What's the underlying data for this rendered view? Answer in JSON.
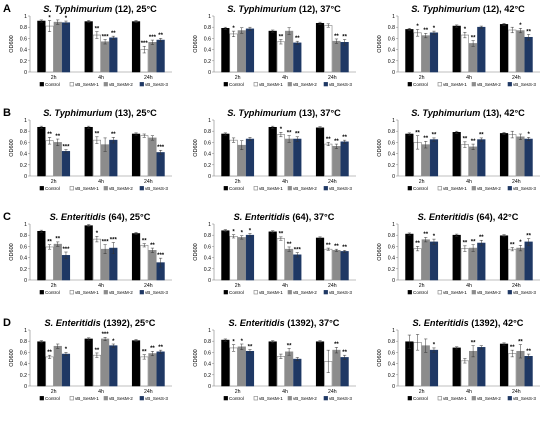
{
  "legend": [
    {
      "label": "Control",
      "color": "#000000",
      "stroke": "#000000"
    },
    {
      "label": "vB_SesM-1",
      "color": "#ffffff",
      "stroke": "#7f7f7f"
    },
    {
      "label": "vB_SesM-2",
      "color": "#8c8c8c",
      "stroke": "#8c8c8c"
    },
    {
      "label": "vB_SesS-3",
      "color": "#1f3864",
      "stroke": "#1f3864"
    }
  ],
  "chart_data": [
    {
      "type": "bar",
      "row": "A",
      "title_species": "S. Typhimurium",
      "title_rest": " (12), 25°C",
      "ylabel": "OD600",
      "ylim": [
        0,
        1
      ],
      "yticks": [
        "0",
        "0.2",
        "0.4",
        "0.6",
        "0.8",
        "1"
      ],
      "categories": [
        "2h",
        "4h",
        "24h"
      ],
      "series": [
        {
          "name": "Control",
          "values": [
            0.91,
            0.9,
            0.9
          ],
          "err": [
            0.02,
            0.02,
            0.02
          ],
          "sig": [
            "",
            "",
            ""
          ]
        },
        {
          "name": "vB_SesM-1",
          "values": [
            0.82,
            0.66,
            0.4
          ],
          "err": [
            0.1,
            0.06,
            0.06
          ],
          "sig": [
            "*",
            "**",
            "***"
          ]
        },
        {
          "name": "vB_SesM-2",
          "values": [
            0.89,
            0.54,
            0.53
          ],
          "err": [
            0.04,
            0.04,
            0.04
          ],
          "sig": [
            "",
            "***",
            "***"
          ]
        },
        {
          "name": "vB_SesS-3",
          "values": [
            0.88,
            0.61,
            0.57
          ],
          "err": [
            0.03,
            0.03,
            0.03
          ],
          "sig": [
            "*",
            "**",
            "**"
          ]
        }
      ]
    },
    {
      "type": "bar",
      "row": "A",
      "title_species": "S. Typhimurium",
      "title_rest": " (12), 37°C",
      "ylabel": "OD600",
      "ylim": [
        0,
        1
      ],
      "yticks": [
        "0",
        "0.2",
        "0.4",
        "0.6",
        "0.8",
        "1"
      ],
      "categories": [
        "2h",
        "4h",
        "24h"
      ],
      "series": [
        {
          "name": "Control",
          "values": [
            0.78,
            0.73,
            0.87
          ],
          "err": [
            0.02,
            0.02,
            0.02
          ],
          "sig": [
            "",
            "",
            ""
          ]
        },
        {
          "name": "vB_SesM-1",
          "values": [
            0.68,
            0.54,
            0.83
          ],
          "err": [
            0.05,
            0.04,
            0.03
          ],
          "sig": [
            "*",
            "**",
            ""
          ]
        },
        {
          "name": "vB_SesM-2",
          "values": [
            0.74,
            0.73,
            0.55
          ],
          "err": [
            0.05,
            0.06,
            0.04
          ],
          "sig": [
            "",
            "",
            "**"
          ]
        },
        {
          "name": "vB_SesS-3",
          "values": [
            0.77,
            0.52,
            0.53
          ],
          "err": [
            0.03,
            0.03,
            0.05
          ],
          "sig": [
            "",
            "**",
            "**"
          ]
        }
      ]
    },
    {
      "type": "bar",
      "row": "A",
      "title_species": "S. Typhimurium",
      "title_rest": " (12), 42°C",
      "ylabel": "OD600",
      "ylim": [
        0,
        1
      ],
      "yticks": [
        "0",
        "0.2",
        "0.4",
        "0.6",
        "0.8",
        "1"
      ],
      "categories": [
        "2h",
        "4h",
        "24h"
      ],
      "series": [
        {
          "name": "Control",
          "values": [
            0.76,
            0.82,
            0.85
          ],
          "err": [
            0.02,
            0.02,
            0.02
          ],
          "sig": [
            "",
            "",
            ""
          ]
        },
        {
          "name": "vB_SesM-1",
          "values": [
            0.7,
            0.66,
            0.75
          ],
          "err": [
            0.06,
            0.05,
            0.05
          ],
          "sig": [
            "*",
            "*",
            ""
          ]
        },
        {
          "name": "vB_SesM-2",
          "values": [
            0.65,
            0.51,
            0.74
          ],
          "err": [
            0.04,
            0.05,
            0.04
          ],
          "sig": [
            "**",
            "**",
            "*"
          ]
        },
        {
          "name": "vB_SesS-3",
          "values": [
            0.7,
            0.8,
            0.62
          ],
          "err": [
            0.03,
            0.02,
            0.05
          ],
          "sig": [
            "*",
            "",
            "**"
          ]
        }
      ]
    },
    {
      "type": "bar",
      "row": "B",
      "title_species": "S. Typhimurium",
      "title_rest": " (13), 25°C",
      "ylabel": "OD600",
      "ylim": [
        0,
        1
      ],
      "yticks": [
        "0",
        "0.2",
        "0.4",
        "0.6",
        "0.8",
        "1"
      ],
      "categories": [
        "2h",
        "4h",
        "24h"
      ],
      "series": [
        {
          "name": "Control",
          "values": [
            0.87,
            0.87,
            0.75
          ],
          "err": [
            0.02,
            0.02,
            0.02
          ],
          "sig": [
            "",
            "",
            ""
          ]
        },
        {
          "name": "vB_SesM-1",
          "values": [
            0.63,
            0.64,
            0.72
          ],
          "err": [
            0.06,
            0.06,
            0.03
          ],
          "sig": [
            "**",
            "**",
            ""
          ]
        },
        {
          "name": "vB_SesM-2",
          "values": [
            0.6,
            0.56,
            0.68
          ],
          "err": [
            0.06,
            0.12,
            0.04
          ],
          "sig": [
            "**",
            "",
            ""
          ]
        },
        {
          "name": "vB_SesS-3",
          "values": [
            0.44,
            0.64,
            0.42
          ],
          "err": [
            0.03,
            0.05,
            0.04
          ],
          "sig": [
            "***",
            "**",
            "***"
          ]
        }
      ]
    },
    {
      "type": "bar",
      "row": "B",
      "title_species": "S. Typhimurium",
      "title_rest": " (13), 37°C",
      "ylabel": "OD600",
      "ylim": [
        0,
        1
      ],
      "yticks": [
        "0",
        "0.2",
        "0.4",
        "0.6",
        "0.8",
        "1"
      ],
      "categories": [
        "2h",
        "4h",
        "24h"
      ],
      "series": [
        {
          "name": "Control",
          "values": [
            0.75,
            0.87,
            0.86
          ],
          "err": [
            0.02,
            0.02,
            0.02
          ],
          "sig": [
            "",
            "",
            ""
          ]
        },
        {
          "name": "vB_SesM-1",
          "values": [
            0.64,
            0.74,
            0.57
          ],
          "err": [
            0.04,
            0.04,
            0.03
          ],
          "sig": [
            "",
            "*",
            "**"
          ]
        },
        {
          "name": "vB_SesM-2",
          "values": [
            0.55,
            0.66,
            0.53
          ],
          "err": [
            0.08,
            0.06,
            0.04
          ],
          "sig": [
            "",
            "**",
            "**"
          ]
        },
        {
          "name": "vB_SesS-3",
          "values": [
            0.66,
            0.66,
            0.61
          ],
          "err": [
            0.03,
            0.04,
            0.03
          ],
          "sig": [
            "",
            "**",
            "**"
          ]
        }
      ]
    },
    {
      "type": "bar",
      "row": "B",
      "title_species": "S. Typhimurium",
      "title_rest": " (13), 42°C",
      "ylabel": "OD600",
      "ylim": [
        0,
        1
      ],
      "yticks": [
        "0",
        "0.2",
        "0.4",
        "0.6",
        "0.8",
        "1"
      ],
      "categories": [
        "2h",
        "4h",
        "24h"
      ],
      "series": [
        {
          "name": "Control",
          "values": [
            0.75,
            0.78,
            0.76
          ],
          "err": [
            0.02,
            0.02,
            0.02
          ],
          "sig": [
            "",
            "",
            ""
          ]
        },
        {
          "name": "vB_SesM-1",
          "values": [
            0.6,
            0.56,
            0.74
          ],
          "err": [
            0.12,
            0.05,
            0.06
          ],
          "sig": [
            "**",
            "**",
            ""
          ]
        },
        {
          "name": "vB_SesM-2",
          "values": [
            0.56,
            0.52,
            0.7
          ],
          "err": [
            0.06,
            0.05,
            0.05
          ],
          "sig": [
            "**",
            "**",
            ""
          ]
        },
        {
          "name": "vB_SesS-3",
          "values": [
            0.65,
            0.65,
            0.66
          ],
          "err": [
            0.03,
            0.03,
            0.03
          ],
          "sig": [
            "**",
            "**",
            "*"
          ]
        }
      ]
    },
    {
      "type": "bar",
      "row": "C",
      "title_species": "S. Enteritidis",
      "title_rest": " (64), 25°C",
      "ylabel": "OD600",
      "ylim": [
        0,
        1
      ],
      "yticks": [
        "0",
        "0.2",
        "0.4",
        "0.6",
        "0.8",
        "1"
      ],
      "categories": [
        "2h",
        "4h",
        "24h"
      ],
      "series": [
        {
          "name": "Control",
          "values": [
            0.87,
            0.97,
            0.83
          ],
          "err": [
            0.02,
            0.02,
            0.02
          ],
          "sig": [
            "",
            "",
            ""
          ]
        },
        {
          "name": "vB_SesM-1",
          "values": [
            0.59,
            0.73,
            0.62
          ],
          "err": [
            0.04,
            0.05,
            0.03
          ],
          "sig": [
            "**",
            "*",
            "**"
          ]
        },
        {
          "name": "vB_SesM-2",
          "values": [
            0.64,
            0.55,
            0.53
          ],
          "err": [
            0.04,
            0.08,
            0.04
          ],
          "sig": [
            "**",
            "***",
            "**"
          ]
        },
        {
          "name": "vB_SesS-3",
          "values": [
            0.44,
            0.57,
            0.31
          ],
          "err": [
            0.06,
            0.1,
            0.08
          ],
          "sig": [
            "***",
            "***",
            "***"
          ]
        }
      ]
    },
    {
      "type": "bar",
      "row": "C",
      "title_species": "S. Enteritidis",
      "title_rest": " (64), 37°C",
      "ylabel": "OD600",
      "ylim": [
        0,
        1
      ],
      "yticks": [
        "0",
        "0.2",
        "0.4",
        "0.6",
        "0.8",
        "1"
      ],
      "categories": [
        "2h",
        "4h",
        "24h"
      ],
      "series": [
        {
          "name": "Control",
          "values": [
            0.88,
            0.86,
            0.75
          ],
          "err": [
            0.02,
            0.02,
            0.02
          ],
          "sig": [
            "",
            "",
            ""
          ]
        },
        {
          "name": "vB_SesM-1",
          "values": [
            0.78,
            0.74,
            0.55
          ],
          "err": [
            0.03,
            0.03,
            0.02
          ],
          "sig": [
            "*",
            "**",
            "**"
          ]
        },
        {
          "name": "vB_SesM-2",
          "values": [
            0.76,
            0.55,
            0.53
          ],
          "err": [
            0.03,
            0.04,
            0.02
          ],
          "sig": [
            "*",
            "**",
            "**"
          ]
        },
        {
          "name": "vB_SesS-3",
          "values": [
            0.8,
            0.45,
            0.51
          ],
          "err": [
            0.03,
            0.04,
            0.02
          ],
          "sig": [
            "*",
            "***",
            "**"
          ]
        }
      ]
    },
    {
      "type": "bar",
      "row": "C",
      "title_species": "S. Enteritidis",
      "title_rest": " (64), 42°C",
      "ylabel": "OD600",
      "ylim": [
        0,
        1
      ],
      "yticks": [
        "0",
        "0.2",
        "0.4",
        "0.6",
        "0.8",
        "1"
      ],
      "categories": [
        "2h",
        "4h",
        "24h"
      ],
      "series": [
        {
          "name": "Control",
          "values": [
            0.82,
            0.8,
            0.79
          ],
          "err": [
            0.02,
            0.02,
            0.02
          ],
          "sig": [
            "",
            "",
            ""
          ]
        },
        {
          "name": "vB_SesM-1",
          "values": [
            0.56,
            0.56,
            0.55
          ],
          "err": [
            0.04,
            0.05,
            0.03
          ],
          "sig": [
            "**",
            "**",
            "**"
          ]
        },
        {
          "name": "vB_SesM-2",
          "values": [
            0.72,
            0.57,
            0.57
          ],
          "err": [
            0.04,
            0.06,
            0.05
          ],
          "sig": [
            "**",
            "**",
            "*"
          ]
        },
        {
          "name": "vB_SesS-3",
          "values": [
            0.68,
            0.66,
            0.68
          ],
          "err": [
            0.05,
            0.05,
            0.06
          ],
          "sig": [
            "*",
            "**",
            "**"
          ]
        }
      ]
    },
    {
      "type": "bar",
      "row": "D",
      "title_species": "S. Enteritidis",
      "title_rest": " (1392), 25°C",
      "ylabel": "OD600",
      "ylim": [
        0,
        1
      ],
      "yticks": [
        "0",
        "0.2",
        "0.4",
        "0.6",
        "0.8",
        "1"
      ],
      "categories": [
        "2h",
        "4h",
        "24h"
      ],
      "series": [
        {
          "name": "Control",
          "values": [
            0.79,
            0.84,
            0.81
          ],
          "err": [
            0.02,
            0.02,
            0.02
          ],
          "sig": [
            "",
            "",
            ""
          ]
        },
        {
          "name": "vB_SesM-1",
          "values": [
            0.52,
            0.55,
            0.52
          ],
          "err": [
            0.03,
            0.04,
            0.04
          ],
          "sig": [
            "**",
            "**",
            "**"
          ]
        },
        {
          "name": "vB_SesM-2",
          "values": [
            0.71,
            0.84,
            0.58
          ],
          "err": [
            0.04,
            0.03,
            0.04
          ],
          "sig": [
            "",
            "***",
            "**"
          ]
        },
        {
          "name": "vB_SesS-3",
          "values": [
            0.57,
            0.72,
            0.61
          ],
          "err": [
            0.03,
            0.03,
            0.03
          ],
          "sig": [
            "*",
            "*",
            "**"
          ]
        }
      ]
    },
    {
      "type": "bar",
      "row": "D",
      "title_species": "S. Enteritidis",
      "title_rest": " (1392), 37°C",
      "ylabel": "OD600",
      "ylim": [
        0,
        1
      ],
      "yticks": [
        "0",
        "0.2",
        "0.4",
        "0.6",
        "0.8",
        "1"
      ],
      "categories": [
        "2h",
        "4h",
        "24h"
      ],
      "series": [
        {
          "name": "Control",
          "values": [
            0.82,
            0.79,
            0.79
          ],
          "err": [
            0.02,
            0.02,
            0.02
          ],
          "sig": [
            "",
            "",
            ""
          ]
        },
        {
          "name": "vB_SesM-1",
          "values": [
            0.68,
            0.53,
            0.44
          ],
          "err": [
            0.06,
            0.04,
            0.2
          ],
          "sig": [
            "*",
            "",
            ""
          ]
        },
        {
          "name": "vB_SesM-2",
          "values": [
            0.7,
            0.61,
            0.64
          ],
          "err": [
            0.05,
            0.06,
            0.05
          ],
          "sig": [
            "*",
            "**",
            "**"
          ]
        },
        {
          "name": "vB_SesS-3",
          "values": [
            0.62,
            0.48,
            0.51
          ],
          "err": [
            0.03,
            0.03,
            0.04
          ],
          "sig": [
            "**",
            "",
            "**"
          ]
        }
      ]
    },
    {
      "type": "bar",
      "row": "D",
      "title_species": "S. Enteritidis",
      "title_rest": " (1392), 42°C",
      "ylabel": "OD600",
      "ylim": [
        0,
        1
      ],
      "yticks": [
        "0",
        "0.2",
        "0.4",
        "0.6",
        "0.8",
        "1"
      ],
      "categories": [
        "2h",
        "4h",
        "24h"
      ],
      "series": [
        {
          "name": "Control",
          "values": [
            0.79,
            0.68,
            0.75
          ],
          "err": [
            0.12,
            0.02,
            0.02
          ],
          "sig": [
            "",
            "",
            ""
          ]
        },
        {
          "name": "vB_SesM-1",
          "values": [
            0.78,
            0.45,
            0.58
          ],
          "err": [
            0.14,
            0.04,
            0.06
          ],
          "sig": [
            "",
            "",
            "**"
          ]
        },
        {
          "name": "vB_SesM-2",
          "values": [
            0.72,
            0.62,
            0.62
          ],
          "err": [
            0.12,
            0.1,
            0.12
          ],
          "sig": [
            "",
            "**",
            "**"
          ]
        },
        {
          "name": "vB_SesS-3",
          "values": [
            0.64,
            0.69,
            0.53
          ],
          "err": [
            0.04,
            0.03,
            0.04
          ],
          "sig": [
            "*",
            "",
            "**"
          ]
        }
      ]
    }
  ]
}
